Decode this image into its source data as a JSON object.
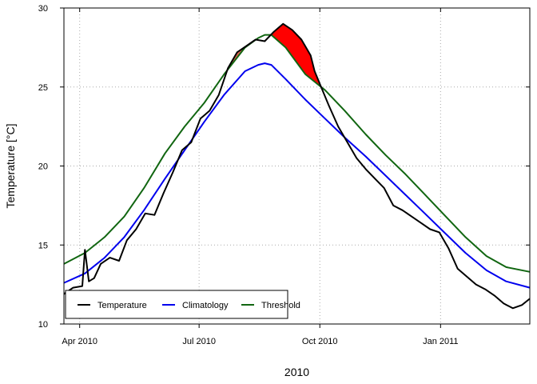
{
  "chart_data": {
    "type": "line",
    "xlabel": "2010",
    "ylabel": "Temperature [°C]",
    "xlim": [
      "2010-03-20",
      "2011-03-10"
    ],
    "ylim": [
      10,
      30
    ],
    "grid": true,
    "legend_position": "bottom-left",
    "x_ticks": [
      {
        "date": "2010-04-01",
        "label": "Apr 2010"
      },
      {
        "date": "2010-07-01",
        "label": "Jul 2010"
      },
      {
        "date": "2010-10-01",
        "label": "Oct 2010"
      },
      {
        "date": "2011-01-01",
        "label": "Jan 2011"
      }
    ],
    "y_ticks": [
      10,
      15,
      20,
      25,
      30
    ],
    "series": [
      {
        "name": "Temperature",
        "color": "#000000",
        "x": [
          "2010-03-20",
          "2010-03-27",
          "2010-04-03",
          "2010-04-05",
          "2010-04-08",
          "2010-04-12",
          "2010-04-17",
          "2010-04-24",
          "2010-05-01",
          "2010-05-07",
          "2010-05-14",
          "2010-05-21",
          "2010-05-28",
          "2010-06-04",
          "2010-06-11",
          "2010-06-18",
          "2010-06-25",
          "2010-07-02",
          "2010-07-09",
          "2010-07-16",
          "2010-07-23",
          "2010-07-30",
          "2010-08-06",
          "2010-08-13",
          "2010-08-20",
          "2010-08-27",
          "2010-09-03",
          "2010-09-10",
          "2010-09-17",
          "2010-09-24",
          "2010-09-27",
          "2010-10-01",
          "2010-10-08",
          "2010-10-15",
          "2010-10-22",
          "2010-10-29",
          "2010-11-05",
          "2010-11-12",
          "2010-11-19",
          "2010-11-26",
          "2010-12-03",
          "2010-12-10",
          "2010-12-17",
          "2010-12-24",
          "2010-12-31",
          "2011-01-07",
          "2011-01-14",
          "2011-01-21",
          "2011-01-28",
          "2011-02-04",
          "2011-02-11",
          "2011-02-18",
          "2011-02-25",
          "2011-03-04",
          "2011-03-10"
        ],
        "values": [
          11.9,
          12.3,
          12.4,
          14.7,
          12.7,
          12.9,
          13.8,
          14.2,
          14.0,
          15.3,
          16.0,
          17.0,
          16.9,
          18.3,
          19.6,
          21.0,
          21.5,
          23.0,
          23.5,
          24.5,
          26.2,
          27.2,
          27.6,
          28.0,
          27.9,
          28.5,
          29.0,
          28.6,
          28.0,
          27.0,
          26.0,
          25.2,
          23.8,
          22.5,
          21.5,
          20.5,
          19.8,
          19.2,
          18.6,
          17.5,
          17.2,
          16.8,
          16.4,
          16.0,
          15.8,
          14.8,
          13.5,
          13.0,
          12.5,
          12.2,
          11.8,
          11.3,
          11.0,
          11.2,
          11.6
        ]
      },
      {
        "name": "Climatology",
        "color": "#0000ee",
        "x": [
          "2010-03-20",
          "2010-04-05",
          "2010-04-20",
          "2010-05-05",
          "2010-05-20",
          "2010-06-05",
          "2010-06-20",
          "2010-07-05",
          "2010-07-20",
          "2010-08-05",
          "2010-08-15",
          "2010-08-20",
          "2010-08-25",
          "2010-09-05",
          "2010-09-20",
          "2010-10-05",
          "2010-10-20",
          "2010-11-05",
          "2010-11-20",
          "2010-12-05",
          "2010-12-20",
          "2011-01-05",
          "2011-01-20",
          "2011-02-05",
          "2011-02-20",
          "2011-03-10"
        ],
        "values": [
          12.6,
          13.2,
          14.2,
          15.5,
          17.2,
          19.2,
          21.0,
          22.8,
          24.5,
          26.0,
          26.4,
          26.5,
          26.4,
          25.5,
          24.2,
          23.0,
          21.8,
          20.6,
          19.4,
          18.2,
          17.0,
          15.7,
          14.5,
          13.4,
          12.7,
          12.3
        ]
      },
      {
        "name": "Threshold",
        "color": "#116611",
        "x": [
          "2010-03-20",
          "2010-04-05",
          "2010-04-20",
          "2010-05-05",
          "2010-05-20",
          "2010-06-05",
          "2010-06-20",
          "2010-07-05",
          "2010-07-20",
          "2010-08-05",
          "2010-08-15",
          "2010-08-20",
          "2010-08-25",
          "2010-09-05",
          "2010-09-20",
          "2010-10-05",
          "2010-10-20",
          "2010-11-05",
          "2010-11-20",
          "2010-12-05",
          "2010-12-20",
          "2011-01-05",
          "2011-01-20",
          "2011-02-05",
          "2011-02-20",
          "2011-03-10"
        ],
        "values": [
          13.8,
          14.5,
          15.5,
          16.8,
          18.6,
          20.8,
          22.5,
          24.0,
          25.8,
          27.5,
          28.1,
          28.3,
          28.3,
          27.5,
          25.8,
          24.8,
          23.5,
          22.0,
          20.7,
          19.5,
          18.2,
          16.8,
          15.5,
          14.3,
          13.6,
          13.3
        ]
      }
    ]
  }
}
